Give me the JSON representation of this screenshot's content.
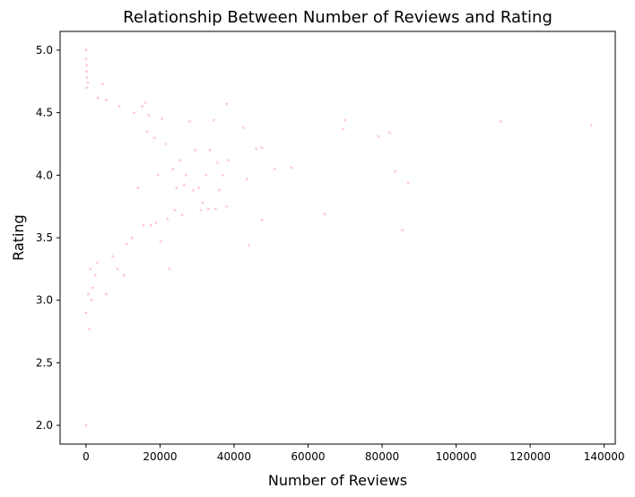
{
  "chart_data": {
    "type": "scatter",
    "title": "Relationship Between Number of Reviews and Rating",
    "xlabel": "Number of Reviews",
    "ylabel": "Rating",
    "xlim": [
      -7000,
      143000
    ],
    "ylim": [
      1.85,
      5.15
    ],
    "xticks": [
      0,
      20000,
      40000,
      60000,
      80000,
      100000,
      120000,
      140000
    ],
    "yticks": [
      "2.0",
      "2.5",
      "3.0",
      "3.5",
      "4.0",
      "4.5",
      "5.0"
    ],
    "grid": false,
    "marker": "star",
    "point_color": "#ffc0cb",
    "points": [
      [
        0,
        5.0
      ],
      [
        0,
        4.93
      ],
      [
        200,
        4.88
      ],
      [
        100,
        4.83
      ],
      [
        300,
        4.78
      ],
      [
        500,
        4.74
      ],
      [
        200,
        4.7
      ],
      [
        0,
        2.0
      ],
      [
        0,
        2.9
      ],
      [
        900,
        2.77
      ],
      [
        600,
        3.05
      ],
      [
        1500,
        3.0
      ],
      [
        1800,
        3.1
      ],
      [
        2500,
        3.2
      ],
      [
        1200,
        3.25
      ],
      [
        3000,
        3.3
      ],
      [
        5500,
        3.05
      ],
      [
        7200,
        3.35
      ],
      [
        8500,
        3.25
      ],
      [
        10200,
        3.2
      ],
      [
        11000,
        3.45
      ],
      [
        12500,
        3.5
      ],
      [
        14000,
        3.9
      ],
      [
        15200,
        4.55
      ],
      [
        16000,
        4.58
      ],
      [
        17000,
        4.48
      ],
      [
        18500,
        4.3
      ],
      [
        20500,
        4.45
      ],
      [
        21500,
        4.25
      ],
      [
        22500,
        3.25
      ],
      [
        23500,
        4.05
      ],
      [
        24500,
        3.9
      ],
      [
        25500,
        4.12
      ],
      [
        26000,
        3.68
      ],
      [
        27000,
        4.0
      ],
      [
        28000,
        4.43
      ],
      [
        29500,
        4.2
      ],
      [
        30500,
        3.9
      ],
      [
        31500,
        3.78
      ],
      [
        32500,
        4.0
      ],
      [
        33500,
        4.2
      ],
      [
        34500,
        4.44
      ],
      [
        35500,
        4.1
      ],
      [
        36000,
        3.88
      ],
      [
        37000,
        4.0
      ],
      [
        38000,
        4.57
      ],
      [
        38500,
        4.12
      ],
      [
        38000,
        3.75
      ],
      [
        42500,
        4.38
      ],
      [
        43500,
        3.97
      ],
      [
        44000,
        3.44
      ],
      [
        46000,
        4.21
      ],
      [
        47500,
        4.22
      ],
      [
        47500,
        3.64
      ],
      [
        51000,
        4.05
      ],
      [
        55500,
        4.06
      ],
      [
        64500,
        3.69
      ],
      [
        69500,
        4.37
      ],
      [
        70000,
        4.44
      ],
      [
        79000,
        4.31
      ],
      [
        82000,
        4.34
      ],
      [
        83500,
        4.03
      ],
      [
        85500,
        3.56
      ],
      [
        87000,
        3.94
      ],
      [
        112000,
        4.43
      ],
      [
        136500,
        4.4
      ],
      [
        4500,
        4.73
      ],
      [
        5500,
        4.6
      ],
      [
        3200,
        4.62
      ],
      [
        9000,
        4.55
      ],
      [
        13000,
        4.5
      ],
      [
        16500,
        4.35
      ],
      [
        19000,
        3.62
      ],
      [
        20200,
        3.47
      ],
      [
        24000,
        3.72
      ],
      [
        31000,
        3.72
      ],
      [
        33000,
        3.73
      ],
      [
        35000,
        3.73
      ],
      [
        17500,
        3.6
      ],
      [
        15500,
        3.6
      ],
      [
        26500,
        3.92
      ],
      [
        29000,
        3.88
      ],
      [
        22000,
        3.65
      ],
      [
        19500,
        4.0
      ]
    ]
  }
}
